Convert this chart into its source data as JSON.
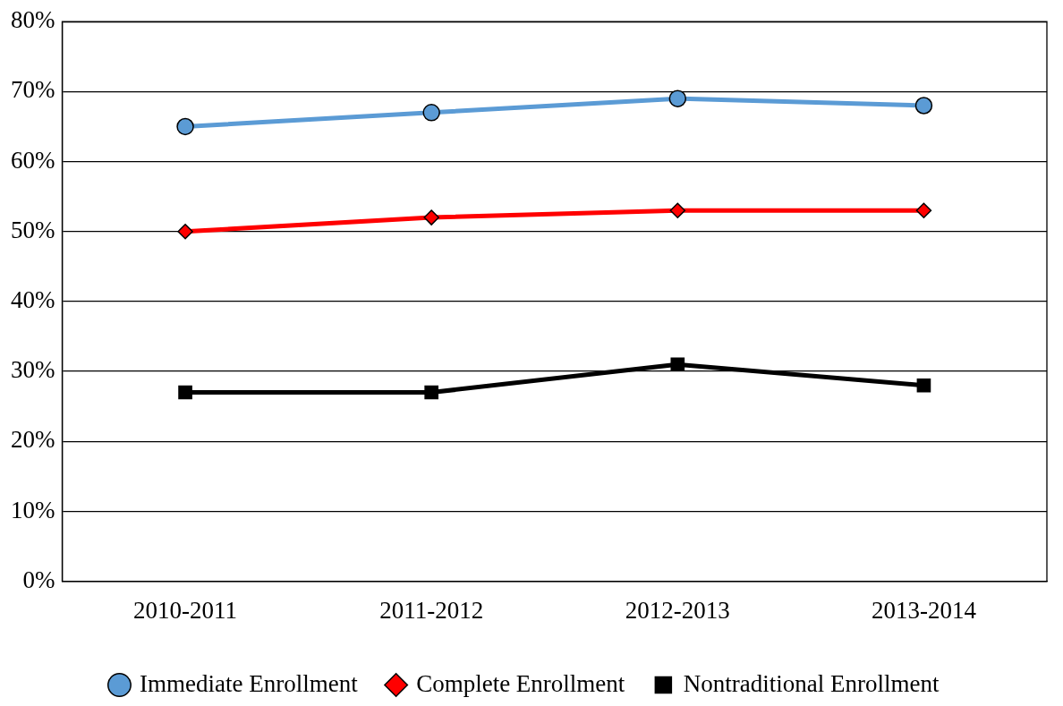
{
  "chart_data": {
    "type": "line",
    "categories": [
      "2010-2011",
      "2011-2012",
      "2012-2013",
      "2013-2014"
    ],
    "series": [
      {
        "name": "Immediate Enrollment",
        "color": "#5b9bd5",
        "marker": "circle",
        "values": [
          65,
          67,
          69,
          68
        ]
      },
      {
        "name": "Complete Enrollment",
        "color": "#ff0000",
        "marker": "diamond",
        "values": [
          50,
          52,
          53,
          53
        ]
      },
      {
        "name": "Nontraditional Enrollment",
        "color": "#000000",
        "marker": "square",
        "values": [
          27,
          27,
          31,
          28
        ]
      }
    ],
    "ylim": [
      0,
      80
    ],
    "yticks": [
      {
        "value": 0,
        "label": "0%"
      },
      {
        "value": 10,
        "label": "10%"
      },
      {
        "value": 20,
        "label": "20%"
      },
      {
        "value": 30,
        "label": "30%"
      },
      {
        "value": 40,
        "label": "40%"
      },
      {
        "value": 50,
        "label": "50%"
      },
      {
        "value": 60,
        "label": "60%"
      },
      {
        "value": 70,
        "label": "70%"
      },
      {
        "value": 80,
        "label": "80%"
      }
    ],
    "grid": "y",
    "legend": "bottom",
    "line_style": "solid"
  }
}
